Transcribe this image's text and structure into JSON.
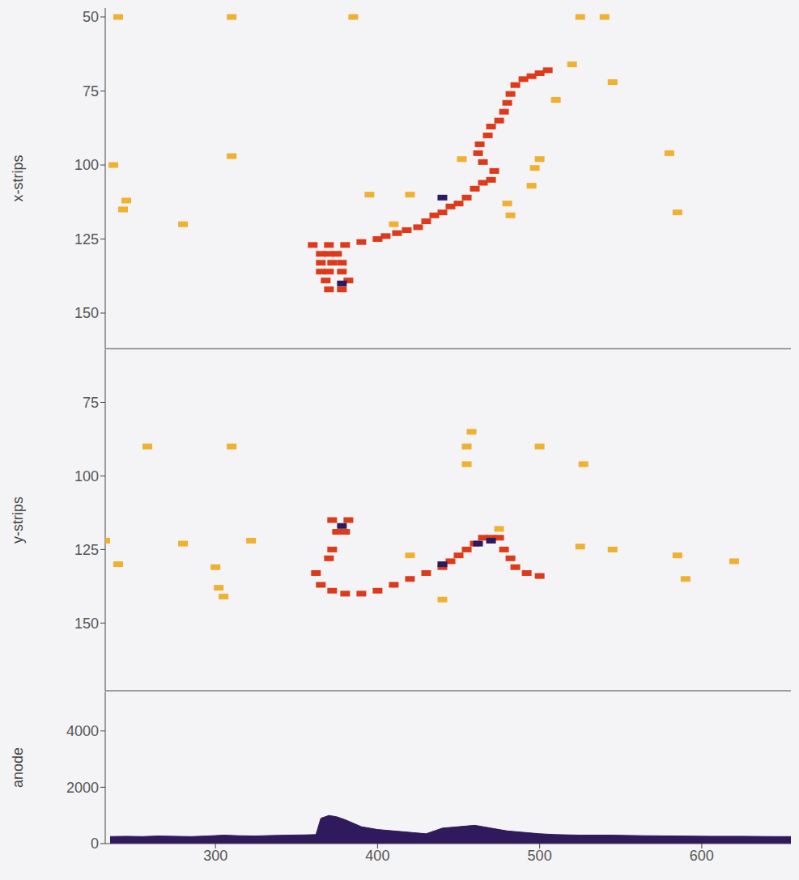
{
  "chart_data": [
    {
      "type": "scatter",
      "y_label": "x-strips",
      "xlim": [
        232,
        655
      ],
      "xticks": [
        300,
        400,
        500,
        600
      ],
      "ylim": [
        162,
        47
      ],
      "yticks": [
        50,
        75,
        100,
        125,
        150
      ],
      "tick_labels": "y",
      "series": [
        {
          "color": "#dc3a1a",
          "x": [
            365,
            370,
            375,
            365,
            372,
            378,
            365,
            370,
            378,
            368,
            382,
            378,
            370,
            360,
            370,
            380,
            390,
            400,
            405,
            412,
            418,
            425,
            430,
            435,
            440,
            445,
            450,
            455,
            460,
            465,
            470,
            472,
            465,
            462,
            463,
            468,
            470,
            475,
            478,
            480,
            482,
            485,
            490,
            495,
            500,
            505
          ],
          "y": [
            130,
            130,
            130,
            133,
            133,
            133,
            136,
            136,
            136,
            139,
            139,
            142,
            142,
            127,
            127,
            127,
            126,
            125,
            124,
            123,
            122,
            121,
            119,
            117,
            116,
            114,
            113,
            111,
            108,
            106,
            105,
            102,
            99,
            96,
            93,
            90,
            87,
            85,
            82,
            79,
            76,
            73,
            71,
            70,
            69,
            68
          ]
        },
        {
          "color": "#f0b030",
          "x": [
            240,
            310,
            385,
            525,
            540,
            237,
            245,
            243,
            280,
            310,
            395,
            410,
            420,
            452,
            480,
            482,
            500,
            497,
            495,
            510,
            520,
            545,
            580,
            585
          ],
          "y": [
            50,
            50,
            50,
            50,
            50,
            100,
            112,
            115,
            120,
            97,
            110,
            120,
            110,
            98,
            113,
            117,
            98,
            101,
            107,
            78,
            66,
            72,
            96,
            116
          ]
        },
        {
          "color": "#2a1a5e",
          "x": [
            378,
            440
          ],
          "y": [
            140,
            111
          ]
        }
      ]
    },
    {
      "type": "scatter",
      "y_label": "y-strips",
      "xlim": [
        232,
        655
      ],
      "xticks": [
        300,
        400,
        500,
        600
      ],
      "ylim": [
        173,
        57
      ],
      "yticks": [
        75,
        100,
        125,
        150
      ],
      "tick_labels": "y",
      "series": [
        {
          "color": "#dc3a1a",
          "x": [
            372,
            382,
            375,
            380,
            372,
            370,
            362,
            365,
            372,
            380,
            390,
            400,
            410,
            420,
            430,
            440,
            445,
            450,
            455,
            460,
            465,
            470,
            475,
            478,
            482,
            485,
            492,
            500
          ],
          "y": [
            115,
            115,
            119,
            119,
            125,
            128,
            133,
            137,
            139,
            140,
            140,
            139,
            137,
            135,
            133,
            131,
            129,
            127,
            125,
            123,
            121,
            121,
            121,
            125,
            128,
            131,
            133,
            134
          ]
        },
        {
          "color": "#f0b030",
          "x": [
            258,
            310,
            458,
            455,
            455,
            500,
            527,
            232,
            240,
            280,
            300,
            302,
            305,
            322,
            440,
            475,
            420,
            525,
            545,
            585,
            590,
            620
          ],
          "y": [
            90,
            90,
            85,
            90,
            96,
            90,
            96,
            122,
            130,
            123,
            131,
            138,
            141,
            122,
            142,
            118,
            127,
            124,
            125,
            127,
            135,
            129
          ]
        },
        {
          "color": "#2a1a5e",
          "x": [
            378,
            440,
            462,
            470
          ],
          "y": [
            117,
            130,
            123,
            122
          ]
        }
      ]
    },
    {
      "type": "area",
      "y_label": "anode",
      "xlim": [
        232,
        655
      ],
      "xticks": [
        300,
        400,
        500,
        600
      ],
      "ylim": [
        0,
        5400
      ],
      "yticks": [
        0,
        2000,
        4000
      ],
      "color": "#2e1a5c",
      "x": [
        235,
        245,
        255,
        265,
        275,
        285,
        295,
        305,
        315,
        325,
        335,
        345,
        355,
        362,
        365,
        370,
        375,
        380,
        390,
        400,
        410,
        420,
        430,
        440,
        450,
        460,
        470,
        480,
        490,
        500,
        510,
        525,
        545,
        565,
        585,
        605,
        625,
        645,
        655
      ],
      "values": [
        250,
        260,
        250,
        270,
        260,
        250,
        270,
        300,
        280,
        270,
        290,
        300,
        310,
        320,
        900,
        1000,
        950,
        850,
        600,
        500,
        450,
        400,
        350,
        550,
        600,
        650,
        550,
        450,
        400,
        350,
        320,
        300,
        300,
        280,
        270,
        260,
        260,
        250,
        250
      ]
    }
  ]
}
